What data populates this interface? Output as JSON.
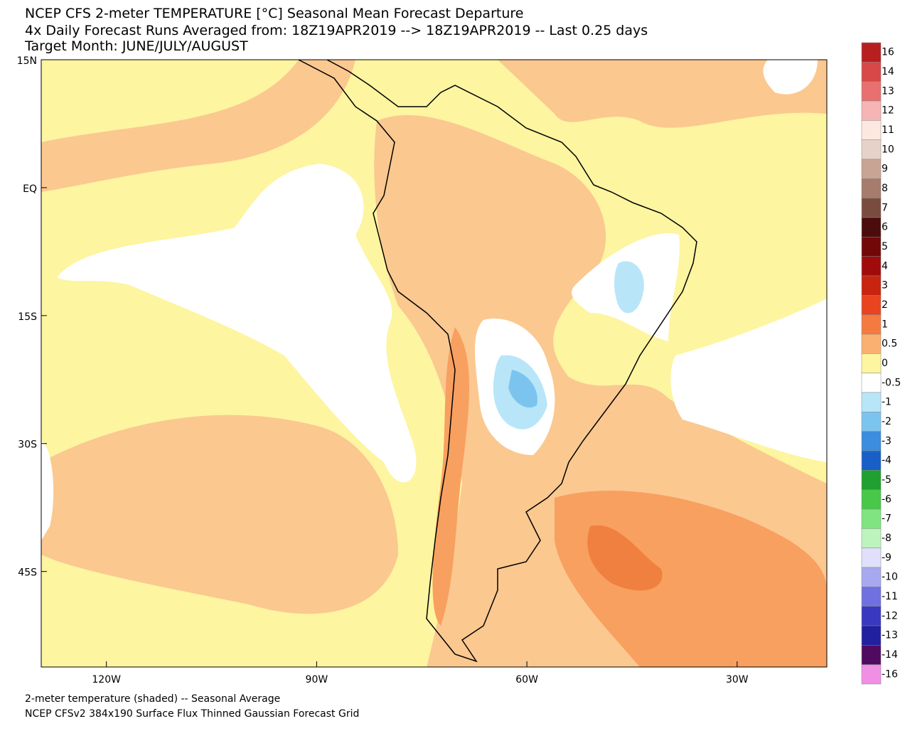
{
  "header": {
    "title": "NCEP CFS 2-meter TEMPERATURE [°C] Seasonal Mean Forecast Departure",
    "subtitle": "4x Daily Forecast Runs Averaged from: 18Z19APR2019 --> 18Z19APR2019 -- Last 0.25 days",
    "target": "Target Month: JUNE/JULY/AUGUST"
  },
  "map": {
    "lat_range": [
      15,
      -56.2
    ],
    "lon_range": [
      -129.3,
      -17.2
    ],
    "lat_ticks": [
      {
        "value": 15,
        "label": "15N"
      },
      {
        "value": 0,
        "label": "EQ"
      },
      {
        "value": -15,
        "label": "15S"
      },
      {
        "value": -30,
        "label": "30S"
      },
      {
        "value": -45,
        "label": "45S"
      }
    ],
    "lon_ticks": [
      {
        "value": -120,
        "label": "120W"
      },
      {
        "value": -90,
        "label": "90W"
      },
      {
        "value": -60,
        "label": "60W"
      },
      {
        "value": -30,
        "label": "30W"
      }
    ]
  },
  "colorbar": [
    {
      "label": "16",
      "color": "#b82020"
    },
    {
      "label": "14",
      "color": "#d84848"
    },
    {
      "label": "13",
      "color": "#e87070"
    },
    {
      "label": "12",
      "color": "#f6b4b4"
    },
    {
      "label": "11",
      "color": "#fde8e0"
    },
    {
      "label": "10",
      "color": "#e6d2c8"
    },
    {
      "label": "9",
      "color": "#c8a494"
    },
    {
      "label": "8",
      "color": "#a67c6c"
    },
    {
      "label": "7",
      "color": "#7a4c40"
    },
    {
      "label": "6",
      "color": "#4c0c0c"
    },
    {
      "label": "5",
      "color": "#720808"
    },
    {
      "label": "4",
      "color": "#a00c0c"
    },
    {
      "label": "3",
      "color": "#c82410"
    },
    {
      "label": "2",
      "color": "#e84420"
    },
    {
      "label": "1",
      "color": "#f57a40"
    },
    {
      "label": "0.5",
      "color": "#f9b070"
    },
    {
      "label": "0",
      "color": "#fdf5a0"
    },
    {
      "label": "-0.5",
      "color": "#ffffff"
    },
    {
      "label": "-1",
      "color": "#b8e6f8"
    },
    {
      "label": "-2",
      "color": "#7cc4f0"
    },
    {
      "label": "-3",
      "color": "#3c8ce0"
    },
    {
      "label": "-4",
      "color": "#1860c8"
    },
    {
      "label": "-5",
      "color": "#20a030"
    },
    {
      "label": "-6",
      "color": "#48c848"
    },
    {
      "label": "-7",
      "color": "#80e480"
    },
    {
      "label": "-8",
      "color": "#bdf4bd"
    },
    {
      "label": "-9",
      "color": "#e0e0fc"
    },
    {
      "label": "-10",
      "color": "#a8a8f0"
    },
    {
      "label": "-11",
      "color": "#7070e0"
    },
    {
      "label": "-12",
      "color": "#3838c0"
    },
    {
      "label": "-13",
      "color": "#2020a0"
    },
    {
      "label": "-14",
      "color": "#500a60"
    },
    {
      "label": "-16",
      "color": "#f090e4"
    }
  ],
  "footer": {
    "line1": "2-meter temperature (shaded) -- Seasonal Average",
    "line2": "NCEP CFSv2 384x190 Surface Flux Thinned Gaussian Forecast Grid"
  }
}
